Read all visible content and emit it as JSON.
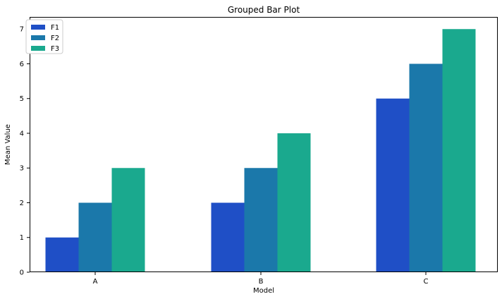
{
  "chart_data": {
    "type": "bar",
    "title": "Grouped Bar Plot",
    "xlabel": "Model",
    "ylabel": "Mean Value",
    "categories": [
      "A",
      "B",
      "C"
    ],
    "series": [
      {
        "name": "F1",
        "values": [
          1,
          2,
          5
        ],
        "color": "#1f4fc6"
      },
      {
        "name": "F2",
        "values": [
          2,
          3,
          6
        ],
        "color": "#1b78aa"
      },
      {
        "name": "F3",
        "values": [
          3,
          4,
          7
        ],
        "color": "#1aa98e"
      }
    ],
    "ylim": [
      0,
      7.35
    ],
    "yticks": [
      0,
      1,
      2,
      3,
      4,
      5,
      6,
      7
    ],
    "grid": false,
    "legend_position": "top-left"
  }
}
